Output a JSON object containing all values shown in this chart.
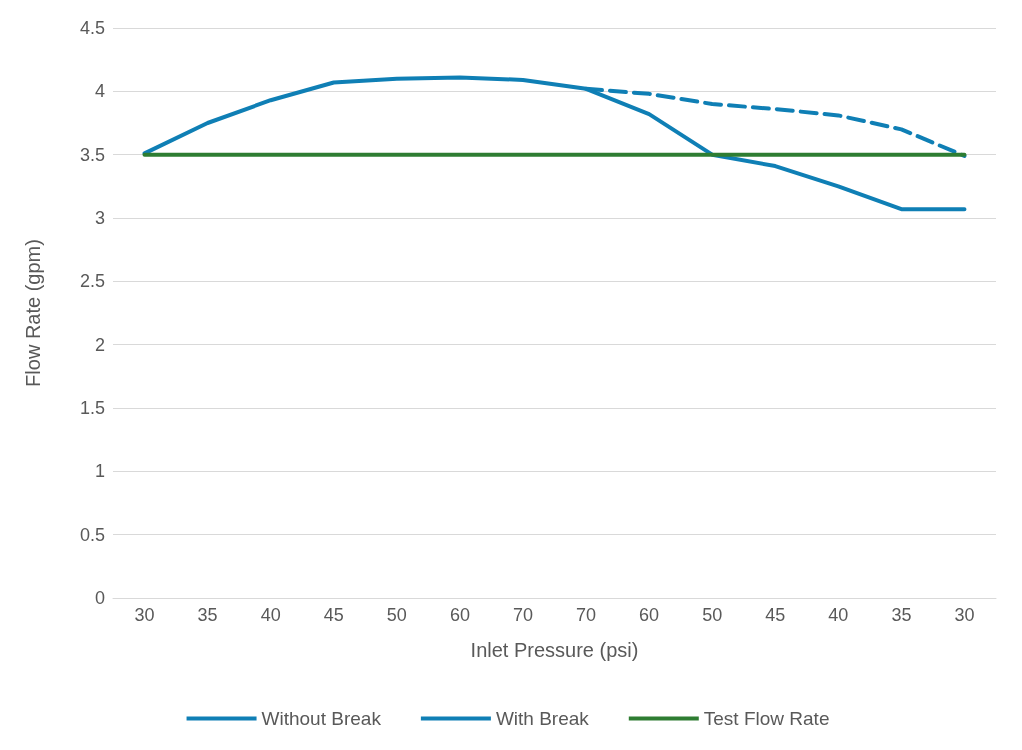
{
  "chart_data": {
    "type": "line",
    "xlabel": "Inlet Pressure (psi)",
    "ylabel": "Flow Rate (gpm)",
    "categories": [
      "30",
      "35",
      "40",
      "45",
      "50",
      "60",
      "70",
      "70",
      "60",
      "50",
      "45",
      "40",
      "35",
      "30"
    ],
    "series": [
      {
        "name": "Without Break",
        "color": "#0f7fb5",
        "values": [
          3.51,
          3.75,
          3.93,
          4.07,
          4.1,
          4.11,
          4.09,
          4.02,
          3.82,
          3.5,
          3.41,
          3.25,
          3.07,
          3.07
        ]
      },
      {
        "name": "With Break",
        "color": "#0f7fb5",
        "line_style": "dashed",
        "values": [
          null,
          null,
          null,
          null,
          null,
          null,
          null,
          4.02,
          3.98,
          3.9,
          3.86,
          3.81,
          3.7,
          3.49
        ]
      },
      {
        "name": "Test Flow Rate",
        "color": "#2e7d32",
        "values": [
          3.5,
          3.5,
          3.5,
          3.5,
          3.5,
          3.5,
          3.5,
          3.5,
          3.5,
          3.5,
          3.5,
          3.5,
          3.5,
          3.5
        ]
      }
    ],
    "ylim": [
      0,
      4.5
    ],
    "yticks": [
      0,
      0.5,
      1,
      1.5,
      2,
      2.5,
      3,
      3.5,
      4,
      4.5
    ],
    "grid": "y",
    "legend": "bottom",
    "marker": "none",
    "line_style": "solid"
  }
}
